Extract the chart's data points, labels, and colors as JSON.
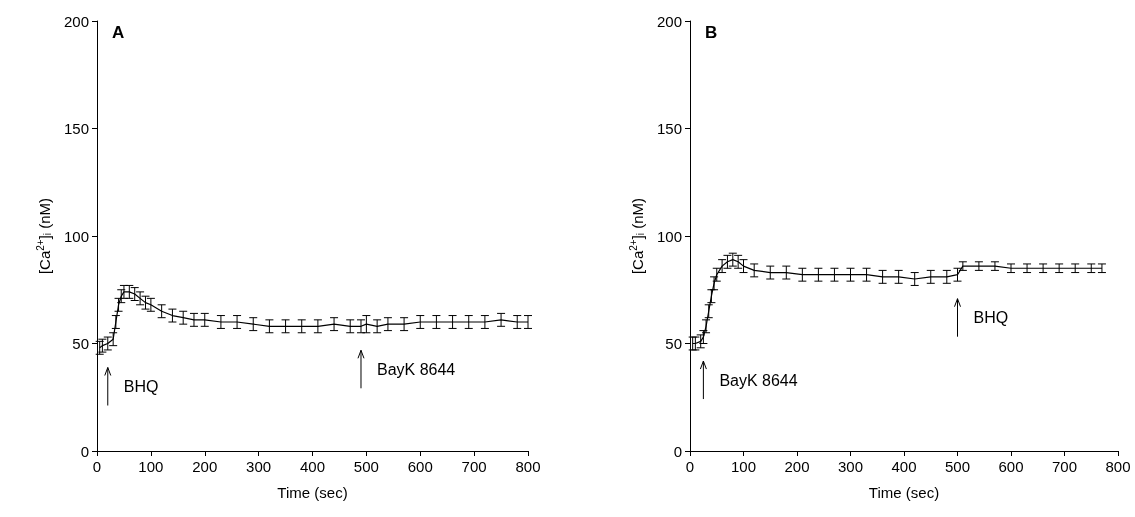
{
  "chart_data": [
    {
      "type": "line",
      "title": "A",
      "xlabel": "Time (sec)",
      "ylabel": "[Ca$^{2+}$]$_{i}$ (nM)",
      "xlim": [
        0,
        800
      ],
      "xticks": [
        0,
        100,
        200,
        300,
        400,
        500,
        600,
        700,
        800
      ],
      "ylim": [
        0,
        200
      ],
      "yticks": [
        0,
        50,
        100,
        150,
        200
      ],
      "grid": false,
      "marker": "none",
      "series": [
        {
          "color": "#000000",
          "x": [
            5,
            10,
            20,
            30,
            35,
            40,
            45,
            50,
            60,
            70,
            80,
            90,
            100,
            120,
            140,
            160,
            180,
            200,
            230,
            260,
            290,
            320,
            350,
            380,
            410,
            440,
            470,
            490,
            500,
            520,
            540,
            570,
            600,
            630,
            660,
            690,
            720,
            750,
            780,
            800
          ],
          "values": [
            48,
            49,
            50,
            52,
            60,
            68,
            72,
            74,
            74,
            73,
            71,
            69,
            68,
            65,
            63,
            62,
            61,
            61,
            60,
            60,
            59,
            58,
            58,
            58,
            58,
            59,
            58,
            58,
            59,
            58,
            59,
            59,
            60,
            60,
            60,
            60,
            60,
            61,
            60,
            60
          ],
          "errors": [
            3,
            3,
            3,
            3,
            3,
            3,
            3,
            3,
            3,
            3,
            3,
            3,
            3,
            3,
            3,
            3,
            3,
            3,
            3,
            3,
            3,
            3,
            3,
            3,
            3,
            3,
            3,
            3,
            4,
            3,
            3,
            3,
            3,
            3,
            3,
            3,
            3,
            3,
            3,
            3
          ]
        }
      ],
      "annotations": [
        {
          "text": "BHQ",
          "x": 20,
          "y": 50
        },
        {
          "text": "BayK 8644",
          "x": 490,
          "y": 58
        }
      ]
    },
    {
      "type": "line",
      "title": "B",
      "xlabel": "Time (sec)",
      "ylabel": "[Ca$^{2+}$]$_{i}$ (nM)",
      "xlim": [
        0,
        800
      ],
      "xticks": [
        0,
        100,
        200,
        300,
        400,
        500,
        600,
        700,
        800
      ],
      "ylim": [
        0,
        200
      ],
      "yticks": [
        0,
        50,
        100,
        150,
        200
      ],
      "grid": false,
      "marker": "none",
      "series": [
        {
          "color": "#000000",
          "x": [
            5,
            10,
            20,
            25,
            30,
            35,
            40,
            45,
            50,
            60,
            70,
            80,
            90,
            100,
            120,
            150,
            180,
            210,
            240,
            270,
            300,
            330,
            360,
            390,
            420,
            450,
            480,
            500,
            510,
            540,
            570,
            600,
            630,
            660,
            690,
            720,
            750,
            770
          ],
          "values": [
            50,
            50,
            51,
            53,
            58,
            65,
            72,
            78,
            82,
            86,
            88,
            89,
            88,
            86,
            84,
            83,
            83,
            82,
            82,
            82,
            82,
            82,
            81,
            81,
            80,
            81,
            81,
            82,
            86,
            86,
            86,
            85,
            85,
            85,
            85,
            85,
            85,
            85
          ],
          "errors": [
            3,
            3,
            3,
            3,
            3,
            3,
            3,
            3,
            3,
            3,
            3,
            3,
            3,
            3,
            3,
            3,
            3,
            3,
            3,
            3,
            3,
            3,
            3,
            3,
            3,
            3,
            3,
            3,
            2,
            2,
            2,
            2,
            2,
            2,
            2,
            2,
            2,
            2
          ]
        }
      ],
      "annotations": [
        {
          "text": "BayK 8644",
          "x": 25,
          "y": 53
        },
        {
          "text": "BHQ",
          "x": 500,
          "y": 82
        }
      ]
    }
  ]
}
